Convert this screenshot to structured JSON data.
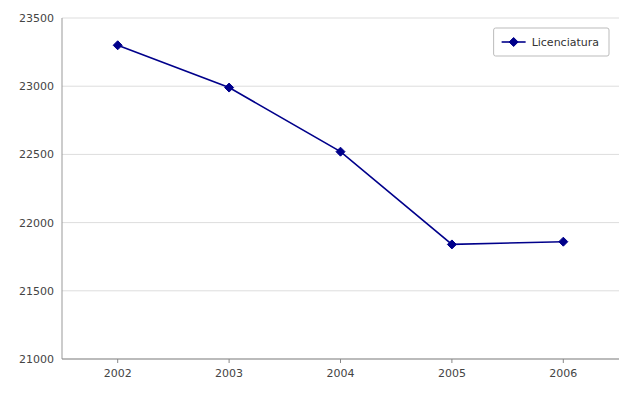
{
  "chart_data": {
    "type": "line",
    "x": [
      2002,
      2003,
      2004,
      2005,
      2006
    ],
    "series": [
      {
        "name": "Licenciatura",
        "color": "#00008B",
        "marker": "diamond",
        "line_style": "solid",
        "values": [
          23300,
          22990,
          22520,
          21840,
          21860
        ]
      }
    ],
    "xlim": [
      2001.5,
      2006.5
    ],
    "xticks": [
      2002,
      2003,
      2004,
      2005,
      2006
    ],
    "ylim": [
      21000,
      23500
    ],
    "yticks": [
      21000,
      21500,
      22000,
      22500,
      23000,
      23500
    ],
    "grid": true,
    "legend": "upper right"
  }
}
